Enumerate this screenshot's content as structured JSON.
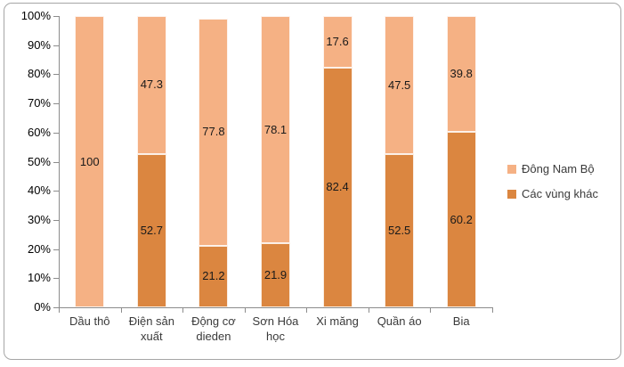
{
  "chart_data": {
    "type": "bar",
    "subtype": "stacked-100-percent-column",
    "title": "",
    "xlabel": "",
    "ylabel": "",
    "grid": false,
    "legend_position": "right",
    "ylim": [
      0,
      100
    ],
    "y_ticks": [
      "0%",
      "10%",
      "20%",
      "30%",
      "40%",
      "50%",
      "60%",
      "70%",
      "80%",
      "90%",
      "100%"
    ],
    "categories": [
      "Dầu thô",
      "Điện sản xuất",
      "Động cơ dieden",
      "Sơn Hóa học",
      "Xi măng",
      "Quần áo",
      "Bia"
    ],
    "series": [
      {
        "name": "Các vùng khác",
        "color": "#DB8640",
        "values": [
          0,
          52.7,
          21.2,
          21.9,
          82.4,
          52.5,
          60.2
        ],
        "labels": [
          "",
          "52.7",
          "21.2",
          "21.9",
          "82.4",
          "52.5",
          "60.2"
        ]
      },
      {
        "name": "Đông Nam Bộ",
        "color": "#F5B184",
        "values": [
          100,
          47.3,
          77.8,
          78.1,
          17.6,
          47.5,
          39.8
        ],
        "labels": [
          "100",
          "47.3",
          "77.8",
          "78.1",
          "17.6",
          "47.5",
          "39.8"
        ]
      }
    ],
    "stack_order_bottom_to_top": [
      "Các vùng khác",
      "Đông Nam Bộ"
    ],
    "legend": [
      {
        "label": "Đông Nam Bộ",
        "color": "#F5B184"
      },
      {
        "label": "Các vùng khác",
        "color": "#DB8640"
      }
    ]
  },
  "colors": {
    "axis": "#8C8C8C",
    "frame_border": "#A6A6A6",
    "data_label": "#1a1a1a",
    "tick_label": "#000000",
    "category_label": "#3a3a3a",
    "background": "#ffffff"
  }
}
